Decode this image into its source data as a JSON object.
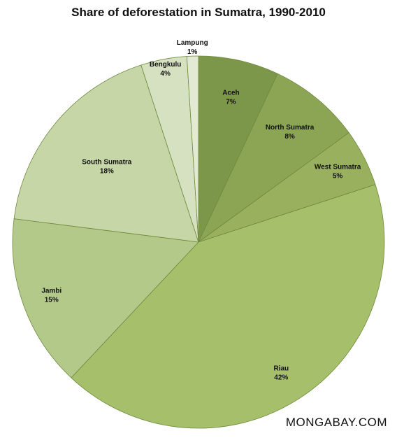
{
  "chart_data": {
    "type": "pie",
    "title": "Share of deforestation in Sumatra, 1990-2010",
    "slices": [
      {
        "label": "Aceh",
        "value_label": "7%",
        "value": 7,
        "color": "#7d974a"
      },
      {
        "label": "North Sumatra",
        "value_label": "8%",
        "value": 8,
        "color": "#8ca555"
      },
      {
        "label": "West Sumatra",
        "value_label": "5%",
        "value": 5,
        "color": "#99b05f"
      },
      {
        "label": "Riau",
        "value_label": "42%",
        "value": 42,
        "color": "#a5bf6b"
      },
      {
        "label": "Jambi",
        "value_label": "15%",
        "value": 15,
        "color": "#b3c98a"
      },
      {
        "label": "South Sumatra",
        "value_label": "18%",
        "value": 18,
        "color": "#c6d6a6"
      },
      {
        "label": "Bengkulu",
        "value_label": "4%",
        "value": 4,
        "color": "#d5e1c0"
      },
      {
        "label": "Lampung",
        "value_label": "1%",
        "value": 1,
        "color": "#e2ead4"
      }
    ],
    "start": "12 o'clock",
    "direction": "clockwise",
    "legend": "none"
  },
  "watermark": "MONGABAY.COM"
}
